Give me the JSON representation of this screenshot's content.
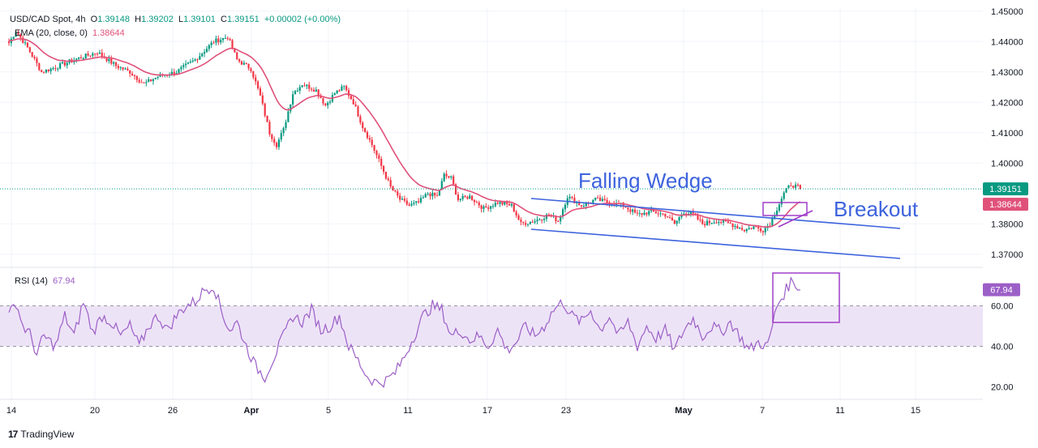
{
  "legend": {
    "symbol": "USD/CAD Spot, 4h",
    "open_label": "O",
    "open": "1.39148",
    "high_label": "H",
    "high": "1.39202",
    "low_label": "L",
    "low": "1.39101",
    "close_label": "C",
    "close": "1.39151",
    "change": "+0.00002 (+0.00%)",
    "ema_label": "EMA (20, close, 0)",
    "ema_value": "1.38644",
    "rsi_label": "RSI (14)",
    "rsi_value": "67.94"
  },
  "brand": {
    "name": "TradingView"
  },
  "colors": {
    "up": "#089981",
    "down": "#f23645",
    "ema": "#e0517a",
    "rsi": "#9c5fc7",
    "rsi_band": "#ede3f7",
    "annot": "#3d63dd",
    "box": "#a13ec9",
    "price_tag": "#089981",
    "ema_tag": "#e0517a",
    "rsi_tag": "#9c5fc7"
  },
  "chart_data": {
    "type": "candlestick",
    "x_tick_labels": [
      "14",
      "20",
      "26",
      "Apr",
      "5",
      "11",
      "17",
      "23",
      "May",
      "7",
      "11",
      "15"
    ],
    "y_axis": {
      "ticks": [
        "1.45000",
        "1.44000",
        "1.43000",
        "1.42000",
        "1.41000",
        "1.40000",
        "1.38000",
        "1.37000"
      ],
      "range": [
        1.367,
        1.451
      ]
    },
    "last_price": "1.39151",
    "ema_last": "1.38644",
    "price_anchors": [
      [
        0,
        1.4395
      ],
      [
        3,
        1.4435
      ],
      [
        8,
        1.438
      ],
      [
        14,
        1.43
      ],
      [
        20,
        1.4315
      ],
      [
        28,
        1.434
      ],
      [
        38,
        1.4365
      ],
      [
        46,
        1.432
      ],
      [
        52,
        1.43
      ],
      [
        58,
        1.426
      ],
      [
        64,
        1.4285
      ],
      [
        72,
        1.43
      ],
      [
        80,
        1.434
      ],
      [
        88,
        1.44
      ],
      [
        94,
        1.4415
      ],
      [
        98,
        1.434
      ],
      [
        104,
        1.431
      ],
      [
        108,
        1.422
      ],
      [
        112,
        1.41
      ],
      [
        115,
        1.406
      ],
      [
        118,
        1.411
      ],
      [
        122,
        1.423
      ],
      [
        126,
        1.426
      ],
      [
        132,
        1.424
      ],
      [
        136,
        1.419
      ],
      [
        140,
        1.423
      ],
      [
        144,
        1.425
      ],
      [
        148,
        1.42
      ],
      [
        152,
        1.412
      ],
      [
        156,
        1.406
      ],
      [
        160,
        1.399
      ],
      [
        164,
        1.392
      ],
      [
        168,
        1.388
      ],
      [
        172,
        1.386
      ],
      [
        176,
        1.387
      ],
      [
        180,
        1.39
      ],
      [
        184,
        1.389
      ],
      [
        187,
        1.396
      ],
      [
        190,
        1.395
      ],
      [
        193,
        1.388
      ],
      [
        198,
        1.389
      ],
      [
        204,
        1.385
      ],
      [
        210,
        1.387
      ],
      [
        216,
        1.386
      ],
      [
        220,
        1.38
      ],
      [
        226,
        1.381
      ],
      [
        232,
        1.383
      ],
      [
        236,
        1.381
      ],
      [
        240,
        1.389
      ],
      [
        246,
        1.386
      ],
      [
        252,
        1.388
      ],
      [
        258,
        1.387
      ],
      [
        264,
        1.386
      ],
      [
        270,
        1.383
      ],
      [
        276,
        1.384
      ],
      [
        282,
        1.383
      ],
      [
        286,
        1.38
      ],
      [
        290,
        1.384
      ],
      [
        294,
        1.383
      ],
      [
        298,
        1.38
      ],
      [
        304,
        1.381
      ],
      [
        310,
        1.38
      ],
      [
        316,
        1.378
      ],
      [
        320,
        1.379
      ],
      [
        324,
        1.378
      ],
      [
        327,
        1.38
      ],
      [
        330,
        1.385
      ],
      [
        333,
        1.39
      ],
      [
        336,
        1.393
      ],
      [
        339,
        1.392
      ],
      [
        340,
        1.3915
      ]
    ],
    "rsi": {
      "ticks": [
        "60.00",
        "40.00",
        "20.00"
      ],
      "range": [
        15,
        75
      ],
      "band": [
        40,
        60
      ],
      "anchors": [
        [
          0,
          55
        ],
        [
          3,
          62
        ],
        [
          6,
          50
        ],
        [
          9,
          46
        ],
        [
          12,
          36
        ],
        [
          15,
          45
        ],
        [
          20,
          40
        ],
        [
          24,
          55
        ],
        [
          28,
          45
        ],
        [
          32,
          62
        ],
        [
          36,
          47
        ],
        [
          40,
          55
        ],
        [
          44,
          52
        ],
        [
          48,
          45
        ],
        [
          52,
          50
        ],
        [
          56,
          40
        ],
        [
          60,
          50
        ],
        [
          64,
          55
        ],
        [
          68,
          48
        ],
        [
          72,
          55
        ],
        [
          76,
          60
        ],
        [
          80,
          62
        ],
        [
          84,
          68
        ],
        [
          88,
          70
        ],
        [
          92,
          55
        ],
        [
          95,
          48
        ],
        [
          98,
          52
        ],
        [
          102,
          40
        ],
        [
          106,
          30
        ],
        [
          110,
          25
        ],
        [
          114,
          35
        ],
        [
          118,
          45
        ],
        [
          122,
          55
        ],
        [
          126,
          52
        ],
        [
          130,
          58
        ],
        [
          134,
          48
        ],
        [
          138,
          50
        ],
        [
          142,
          55
        ],
        [
          146,
          40
        ],
        [
          150,
          33
        ],
        [
          154,
          25
        ],
        [
          158,
          22
        ],
        [
          162,
          23
        ],
        [
          166,
          27
        ],
        [
          170,
          35
        ],
        [
          174,
          45
        ],
        [
          178,
          55
        ],
        [
          182,
          60
        ],
        [
          186,
          58
        ],
        [
          190,
          45
        ],
        [
          194,
          48
        ],
        [
          198,
          43
        ],
        [
          202,
          45
        ],
        [
          206,
          40
        ],
        [
          210,
          48
        ],
        [
          214,
          38
        ],
        [
          218,
          42
        ],
        [
          222,
          50
        ],
        [
          226,
          45
        ],
        [
          230,
          50
        ],
        [
          234,
          58
        ],
        [
          238,
          62
        ],
        [
          242,
          55
        ],
        [
          246,
          52
        ],
        [
          250,
          58
        ],
        [
          254,
          48
        ],
        [
          258,
          55
        ],
        [
          262,
          45
        ],
        [
          266,
          52
        ],
        [
          270,
          40
        ],
        [
          274,
          50
        ],
        [
          278,
          44
        ],
        [
          282,
          48
        ],
        [
          286,
          38
        ],
        [
          290,
          48
        ],
        [
          294,
          54
        ],
        [
          298,
          45
        ],
        [
          302,
          50
        ],
        [
          306,
          47
        ],
        [
          310,
          52
        ],
        [
          314,
          45
        ],
        [
          318,
          38
        ],
        [
          322,
          42
        ],
        [
          326,
          40
        ],
        [
          328,
          50
        ],
        [
          330,
          60
        ],
        [
          332,
          64
        ],
        [
          334,
          68
        ],
        [
          336,
          72
        ],
        [
          338,
          71
        ],
        [
          340,
          67.94
        ]
      ]
    },
    "annotations": {
      "wedge_label": "Falling Wedge",
      "breakout_label": "Breakout"
    }
  }
}
